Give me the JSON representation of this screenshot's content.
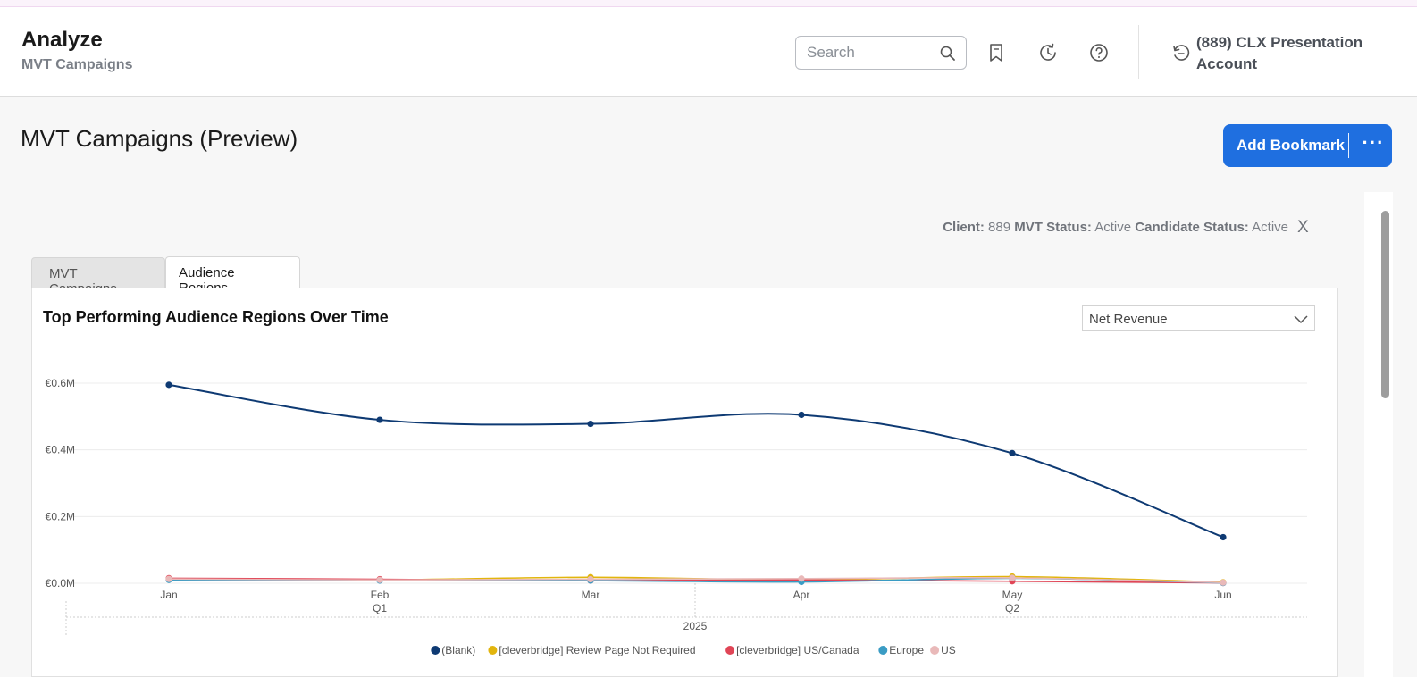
{
  "header": {
    "app_title": "Analyze",
    "app_subtitle": "MVT Campaigns",
    "search_placeholder": "Search",
    "account_label": "(889) CLX Presentation Account",
    "icons": [
      "search-icon",
      "bookmark-icon",
      "history-icon",
      "help-icon",
      "switch-account-icon"
    ]
  },
  "page": {
    "title": "MVT Campaigns (Preview)",
    "add_bookmark_label": "Add Bookmark",
    "more_label": "···"
  },
  "filters": {
    "client_label": "Client:",
    "client_value": "889",
    "mvt_status_label": "MVT Status:",
    "mvt_status_value": "Active",
    "candidate_status_label": "Candidate Status:",
    "candidate_status_value": "Active",
    "clear_label": "X"
  },
  "tabs": [
    {
      "label": "MVT Campaigns",
      "active": false
    },
    {
      "label": "Audience Regions",
      "active": true
    }
  ],
  "chart_panel": {
    "metric_selected": "Net Revenue"
  },
  "chart_data": {
    "type": "line",
    "title": "Top Performing Audience Regions Over Time",
    "x": [
      "Jan",
      "Feb",
      "Mar",
      "Apr",
      "May",
      "Jun"
    ],
    "quarter_labels": [
      {
        "label": "Q1",
        "at": "Feb"
      },
      {
        "label": "Q2",
        "at": "May"
      }
    ],
    "year_label": "2025",
    "y_ticks": [
      "€0.0M",
      "€0.2M",
      "€0.4M",
      "€0.6M"
    ],
    "ylim": [
      0,
      0.6
    ],
    "y_unit": "M EUR",
    "grid": true,
    "legend_position": "bottom",
    "series": [
      {
        "name": "(Blank)",
        "color": "#0e3a73",
        "values": [
          0.595,
          0.49,
          0.478,
          0.505,
          0.39,
          0.138
        ]
      },
      {
        "name": "[cleverbridge] Review Page Not Required",
        "color": "#e2b50d",
        "values": [
          0.012,
          0.01,
          0.018,
          0.01,
          0.02,
          0.003
        ]
      },
      {
        "name": "[cleverbridge] US/Canada",
        "color": "#e04556",
        "values": [
          0.015,
          0.012,
          0.008,
          0.01,
          0.006,
          0.001
        ]
      },
      {
        "name": "Europe",
        "color": "#3a9cc4",
        "values": [
          0.01,
          0.008,
          0.008,
          0.004,
          0.015,
          0.001
        ]
      },
      {
        "name": "US",
        "color": "#e9b9b9",
        "values": [
          0.013,
          0.01,
          0.012,
          0.014,
          0.016,
          0.002
        ]
      }
    ]
  }
}
